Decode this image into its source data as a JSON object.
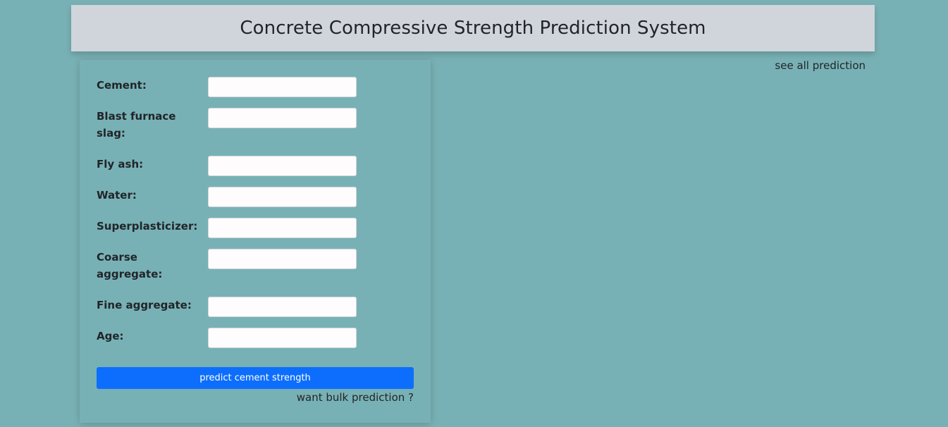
{
  "header": {
    "title": "Concrete Compressive Strength Prediction System"
  },
  "links": {
    "see_all": "see all prediction",
    "bulk": "want bulk prediction ?"
  },
  "form": {
    "fields": [
      {
        "label": "Cement:",
        "value": ""
      },
      {
        "label": "Blast furnace slag:",
        "value": ""
      },
      {
        "label": "Fly ash:",
        "value": ""
      },
      {
        "label": "Water:",
        "value": ""
      },
      {
        "label": "Superplasticizer:",
        "value": ""
      },
      {
        "label": "Coarse aggregate:",
        "value": ""
      },
      {
        "label": "Fine aggregate:",
        "value": ""
      },
      {
        "label": "Age:",
        "value": ""
      }
    ],
    "submit_label": "predict cement strength"
  },
  "colors": {
    "background": "#78b1b5",
    "header_bg": "#d0d4db",
    "button": "#0d6efd"
  }
}
